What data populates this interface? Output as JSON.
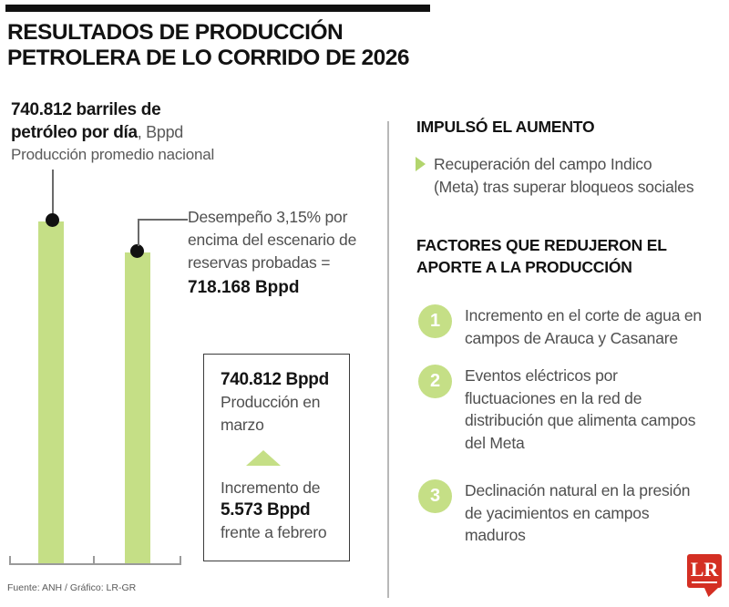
{
  "header": {
    "title": "RESULTADOS DE PRODUCCIÓN\nPETROLERA DE LO CORRIDO DE 2026"
  },
  "stat": {
    "bold_line1": "740.812 barriles de",
    "bold_line2": "petróleo por día",
    "suffix": ", Bppd",
    "subtitle": "Producción promedio nacional"
  },
  "annotation": {
    "text": "Desempeño 3,15% por\nencima del escenario de\nreservas probadas =",
    "value": "718.168 Bppd"
  },
  "march_box": {
    "value": "740.812 Bppd",
    "label": "Producción en\nmarzo",
    "increase_label": "Incremento de",
    "increase_value": "5.573 Bppd",
    "increase_suffix": "frente a febrero"
  },
  "right": {
    "impulso_heading": "IMPULSÓ EL AUMENTO",
    "impulso_item": "Recuperación del campo Indico\n(Meta) tras superar bloqueos sociales",
    "factores_heading": "FACTORES QUE REDUJERON EL\nAPORTE A LA PRODUCCIÓN",
    "factors": [
      {
        "number": "1",
        "text": "Incremento en el corte de agua en\ncampos de Arauca y Casanare"
      },
      {
        "number": "2",
        "text": "Eventos eléctricos por\nfluctuaciones en la red de\ndistribución que alimenta campos\ndel Meta"
      },
      {
        "number": "3",
        "text": "Declinación natural en la presión\nde yacimientos en campos\nmaduros"
      }
    ]
  },
  "footer": {
    "source": "Fuente: ANH / Gráfico: LR-GR",
    "logo_text": "LR"
  },
  "colors": {
    "green": "#c5df86",
    "green_accent": "#b2d56d",
    "logo_red": "#d42f23",
    "axis_gray": "#9a9a9a",
    "divider_gray": "#b8b8b8"
  },
  "chart_data": {
    "type": "bar",
    "categories": [
      "Producción promedio nacional",
      "Escenario de reservas probadas"
    ],
    "values": [
      740812,
      718168
    ],
    "unit": "Bppd",
    "title": "Resultados de producción petrolera de lo corrido de 2026",
    "xlabel": "",
    "ylabel": "Bppd",
    "grid": false,
    "legend": false,
    "notes": [
      "Producción promedio nacional: 740.812 Bppd",
      "Desempeño 3,15% por encima del escenario de reservas probadas = 718.168 Bppd",
      "Producción en marzo: 740.812 Bppd",
      "Incremento de 5.573 Bppd frente a febrero"
    ]
  }
}
